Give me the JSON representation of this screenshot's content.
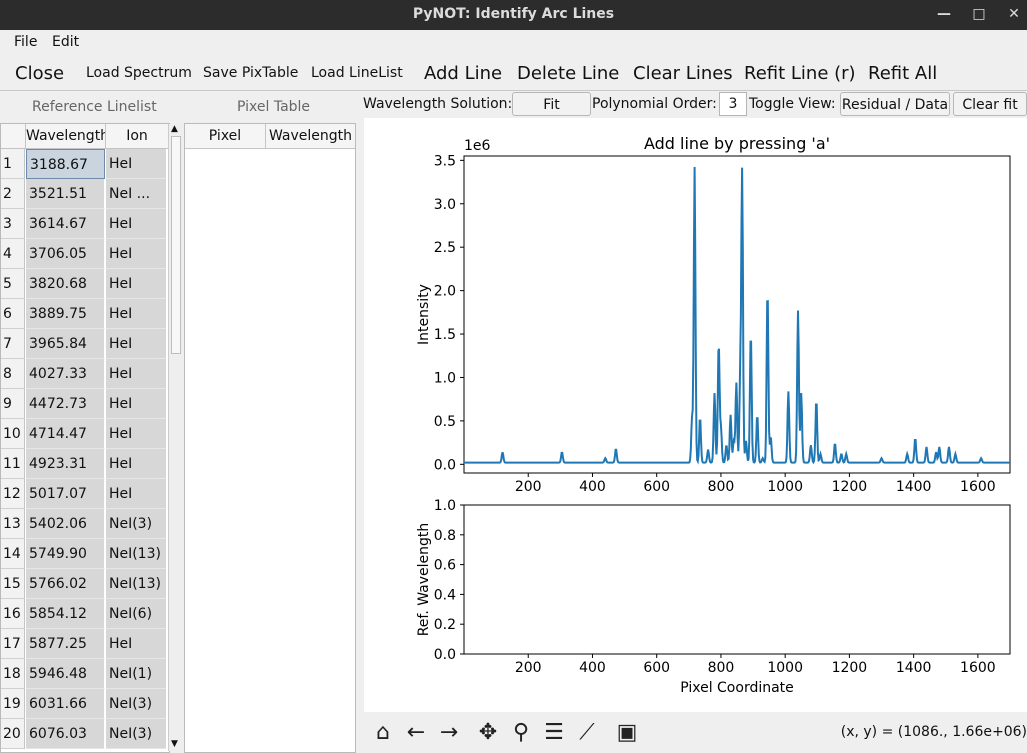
{
  "window": {
    "title": "PyNOT: Identify Arc Lines",
    "minimize": "—",
    "maximize": "□",
    "close": "✕"
  },
  "menu": {
    "file": "File",
    "edit": "Edit"
  },
  "toolbar": {
    "close": "Close",
    "load_spectrum": "Load Spectrum",
    "save_pixtable": "Save PixTable",
    "load_linelist": "Load LineList",
    "add_line": "Add Line",
    "delete_line": "Delete Line",
    "clear_lines": "Clear Lines",
    "refit_line": "Refit Line (r)",
    "refit_all": "Refit All"
  },
  "reference_linelist": {
    "title": "Reference Linelist",
    "columns": [
      "Wavelength",
      "Ion"
    ],
    "rows": [
      [
        "3188.67",
        "HeI"
      ],
      [
        "3521.51",
        "NeI ..."
      ],
      [
        "3614.67",
        "HeI"
      ],
      [
        "3706.05",
        "HeI"
      ],
      [
        "3820.68",
        "HeI"
      ],
      [
        "3889.75",
        "HeI"
      ],
      [
        "3965.84",
        "HeI"
      ],
      [
        "4027.33",
        "HeI"
      ],
      [
        "4472.73",
        "HeI"
      ],
      [
        "4714.47",
        "HeI"
      ],
      [
        "4923.31",
        "HeI"
      ],
      [
        "5017.07",
        "HeI"
      ],
      [
        "5402.06",
        "NeI(3)"
      ],
      [
        "5749.90",
        "NeI(13)"
      ],
      [
        "5766.02",
        "NeI(13)"
      ],
      [
        "5854.12",
        "NeI(6)"
      ],
      [
        "5877.25",
        "HeI"
      ],
      [
        "5946.48",
        "NeI(1)"
      ],
      [
        "6031.66",
        "NeI(3)"
      ],
      [
        "6076.03",
        "NeI(3)"
      ]
    ]
  },
  "pixel_table": {
    "title": "Pixel Table",
    "columns": [
      "Pixel",
      "Wavelength"
    ]
  },
  "controls": {
    "wavelength_solution_label": "Wavelength Solution:",
    "fit_button": "Fit",
    "poly_order_label": "Polynomial Order:",
    "poly_order_value": "3",
    "toggle_view_label": "Toggle View:",
    "toggle_button": "Residual / Data",
    "clear_fit_button": "Clear fit"
  },
  "status": {
    "coords": "(x, y) = (1086., 1.66e+06)"
  },
  "nav_icons": [
    "home-icon",
    "back-icon",
    "forward-icon",
    "pan-icon",
    "zoom-icon",
    "configure-icon",
    "axes-edit-icon",
    "save-icon"
  ],
  "colors": {
    "line": "#1f77b4"
  },
  "chart_data": [
    {
      "type": "line",
      "title": "Add line by pressing 'a'",
      "xlabel": "",
      "ylabel": "Intensity",
      "offset_text": "1e6",
      "xlim": [
        0,
        1700
      ],
      "ylim": [
        -0.1,
        3.55
      ],
      "xticks": [
        200,
        400,
        600,
        800,
        1000,
        1200,
        1400,
        1600
      ],
      "yticks": [
        0.0,
        0.5,
        1.0,
        1.5,
        2.0,
        2.5,
        3.0,
        3.5
      ],
      "ytick_labels": [
        "0.0",
        "0.5",
        "1.0",
        "1.5",
        "2.0",
        "2.5",
        "3.0",
        "3.5"
      ],
      "baseline": 0.02,
      "peaks": [
        [
          120,
          0.12
        ],
        [
          305,
          0.12
        ],
        [
          440,
          0.05
        ],
        [
          473,
          0.16
        ],
        [
          710,
          0.5
        ],
        [
          718,
          3.4
        ],
        [
          735,
          0.52
        ],
        [
          760,
          0.15
        ],
        [
          780,
          0.8
        ],
        [
          793,
          1.38
        ],
        [
          800,
          0.4
        ],
        [
          817,
          0.2
        ],
        [
          830,
          0.55
        ],
        [
          840,
          0.25
        ],
        [
          848,
          0.92
        ],
        [
          860,
          0.95
        ],
        [
          866,
          3.33
        ],
        [
          878,
          0.25
        ],
        [
          893,
          1.5
        ],
        [
          913,
          0.55
        ],
        [
          930,
          0.05
        ],
        [
          945,
          2.0
        ],
        [
          955,
          0.3
        ],
        [
          1010,
          0.82
        ],
        [
          1040,
          1.75
        ],
        [
          1050,
          0.8
        ],
        [
          1080,
          0.2
        ],
        [
          1097,
          0.72
        ],
        [
          1110,
          0.1
        ],
        [
          1155,
          0.22
        ],
        [
          1175,
          0.1
        ],
        [
          1190,
          0.1
        ],
        [
          1300,
          0.05
        ],
        [
          1380,
          0.1
        ],
        [
          1405,
          0.28
        ],
        [
          1440,
          0.18
        ],
        [
          1470,
          0.12
        ],
        [
          1480,
          0.18
        ],
        [
          1510,
          0.18
        ],
        [
          1530,
          0.1
        ],
        [
          1610,
          0.05
        ]
      ]
    },
    {
      "type": "scatter",
      "title": "",
      "xlabel": "Pixel Coordinate",
      "ylabel": "Ref. Wavelength",
      "xlim": [
        0,
        1700
      ],
      "ylim": [
        0.0,
        1.0
      ],
      "xticks": [
        200,
        400,
        600,
        800,
        1000,
        1200,
        1400,
        1600
      ],
      "yticks": [
        0.0,
        0.2,
        0.4,
        0.6,
        0.8,
        1.0
      ],
      "ytick_labels": [
        "0.0",
        "0.2",
        "0.4",
        "0.6",
        "0.8",
        "1.0"
      ],
      "x": [],
      "y": []
    }
  ]
}
